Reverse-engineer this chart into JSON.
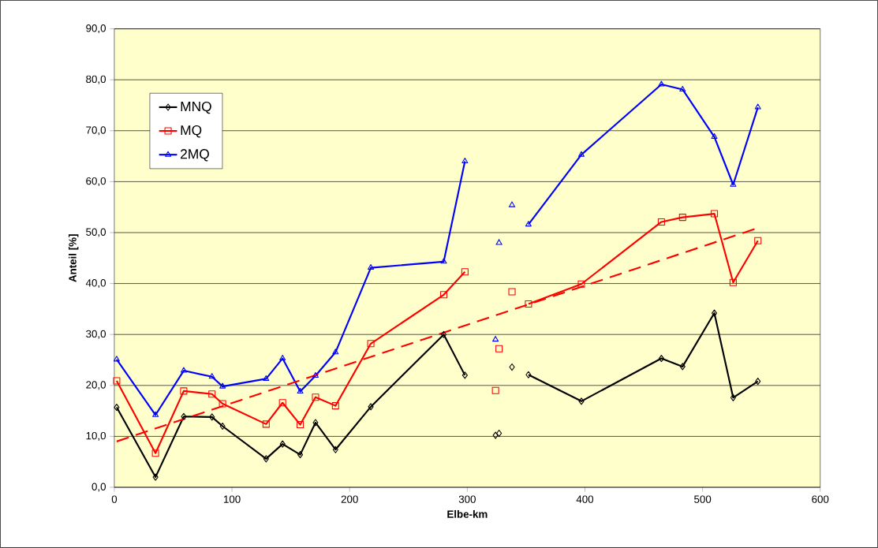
{
  "chart_data": {
    "type": "line",
    "xlabel": "Elbe-km",
    "ylabel": "Anteil [%]",
    "xlim": [
      0,
      600
    ],
    "xticks": [
      0,
      100,
      200,
      300,
      400,
      500,
      600
    ],
    "ylim": [
      0,
      90
    ],
    "yticks": [
      {
        "value": 0,
        "label": "0,0"
      },
      {
        "value": 10,
        "label": "10,0"
      },
      {
        "value": 20,
        "label": "20,0"
      },
      {
        "value": 30,
        "label": "30,0"
      },
      {
        "value": 40,
        "label": "40,0"
      },
      {
        "value": 50,
        "label": "50,0"
      },
      {
        "value": 60,
        "label": "60,0"
      },
      {
        "value": 70,
        "label": "70,0"
      },
      {
        "value": 80,
        "label": "80,0"
      },
      {
        "value": 90,
        "label": "90,0"
      }
    ],
    "grid": "y",
    "legend": "top left",
    "series": [
      {
        "name": "MNQ",
        "color": "#000000",
        "marker": "diamond",
        "x": [
          2,
          35,
          59,
          83,
          92,
          129,
          143,
          158,
          171,
          188,
          218,
          280,
          298,
          325,
          352,
          397,
          465,
          483,
          510,
          526,
          547
        ],
        "values": [
          15.7,
          2.0,
          13.9,
          13.8,
          12.0,
          5.6,
          8.5,
          6.4,
          12.7,
          7.4,
          15.8,
          30.0,
          22.0,
          null,
          22.1,
          16.9,
          25.3,
          23.7,
          34.2,
          17.6,
          20.8
        ]
      },
      {
        "name": "MQ",
        "color": "#ff0000",
        "marker": "square",
        "x": [
          2,
          35,
          59,
          83,
          92,
          129,
          143,
          158,
          171,
          188,
          218,
          280,
          298,
          325,
          352,
          397,
          465,
          483,
          510,
          526,
          547
        ],
        "values": [
          20.9,
          6.7,
          18.9,
          18.3,
          16.4,
          12.4,
          16.6,
          12.3,
          17.7,
          16.0,
          28.2,
          37.8,
          42.3,
          null,
          36.0,
          39.9,
          52.1,
          53.0,
          53.7,
          40.2,
          48.4
        ]
      },
      {
        "name": "2MQ",
        "color": "#0000ff",
        "marker": "triangle",
        "x": [
          2,
          35,
          59,
          83,
          92,
          129,
          143,
          158,
          171,
          188,
          218,
          280,
          298,
          325,
          352,
          397,
          465,
          483,
          510,
          526,
          547
        ],
        "values": [
          25.1,
          14.2,
          22.9,
          21.7,
          19.8,
          21.3,
          25.3,
          18.8,
          21.9,
          26.5,
          43.1,
          44.3,
          64.0,
          null,
          51.6,
          65.3,
          79.1,
          78.1,
          68.8,
          59.4,
          74.6
        ]
      },
      {
        "type": "scatter",
        "color": "#000000",
        "marker": "diamond",
        "x": [
          324,
          327,
          338
        ],
        "values": [
          10.2,
          10.6,
          23.6
        ]
      },
      {
        "type": "scatter",
        "color": "#ff0000",
        "marker": "square",
        "x": [
          324,
          327,
          338
        ],
        "values": [
          19.0,
          27.2,
          38.4
        ]
      },
      {
        "type": "scatter",
        "color": "#0000ff",
        "marker": "triangle",
        "x": [
          324,
          327,
          338
        ],
        "values": [
          29.0,
          48.0,
          55.4
        ]
      },
      {
        "type": "line",
        "color": "#ff0000",
        "marker": "none",
        "line_style": "dashed",
        "x": [
          2,
          547
        ],
        "values": [
          9.0,
          50.9
        ]
      }
    ]
  }
}
